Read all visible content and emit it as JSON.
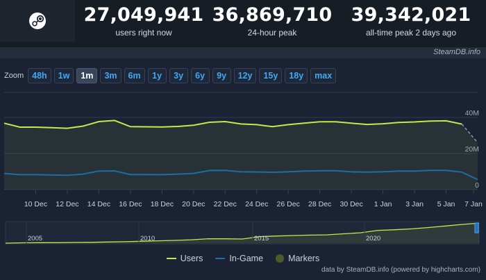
{
  "stats": [
    {
      "value": "27,049,941",
      "label": "users right now"
    },
    {
      "value": "36,869,710",
      "label": "24-hour peak"
    },
    {
      "value": "39,342,021",
      "label": "all-time peak 2 days ago"
    }
  ],
  "credit_top": "SteamDB.info",
  "zoom": {
    "label": "Zoom",
    "buttons": [
      "48h",
      "1w",
      "1m",
      "3m",
      "6m",
      "1y",
      "3y",
      "6y",
      "9y",
      "12y",
      "15y",
      "18y",
      "max"
    ],
    "active": "1m"
  },
  "icons": {
    "logo": "steam-logo-icon"
  },
  "colors": {
    "users": "#c6e84b",
    "ingame": "#1a6fa8",
    "markers": "#4d5a2a",
    "active_button": "#38465b",
    "button_text": "#3fa9f5"
  },
  "legend": {
    "users": "Users",
    "ingame": "In-Game",
    "markers": "Markers"
  },
  "credit_bottom": "data by SteamDB.info (powered by highcharts.com)",
  "chart_data": {
    "type": "line",
    "x_tick_labels": [
      "10 Dec",
      "12 Dec",
      "14 Dec",
      "16 Dec",
      "18 Dec",
      "20 Dec",
      "22 Dec",
      "24 Dec",
      "26 Dec",
      "28 Dec",
      "30 Dec",
      "1 Jan",
      "3 Jan",
      "5 Jan",
      "7 Jan"
    ],
    "y_tick_labels": [
      "0",
      "20M",
      "40M"
    ],
    "ylim": [
      0,
      40
    ],
    "grid": true,
    "legend_placement": "bottom-center",
    "x_days": [
      0,
      1,
      2,
      3,
      4,
      5,
      6,
      7,
      8,
      9,
      10,
      11,
      12,
      13,
      14,
      15,
      16,
      17,
      18,
      19,
      20,
      21,
      22,
      23,
      24,
      25,
      26,
      27,
      28,
      29,
      30
    ],
    "series": [
      {
        "name": "Users",
        "values": [
          36.8,
          34.6,
          34.6,
          34.3,
          34.0,
          35.2,
          37.7,
          38.3,
          34.9,
          34.8,
          34.7,
          35.0,
          35.7,
          37.3,
          37.7,
          36.4,
          36.0,
          34.9,
          36.0,
          36.8,
          37.6,
          37.6,
          36.8,
          36.1,
          36.5,
          37.2,
          37.5,
          38.0,
          38.1,
          36.3,
          26.0
        ]
      },
      {
        "name": "In-Game",
        "values": [
          9.0,
          8.3,
          8.3,
          8.1,
          8.0,
          8.6,
          10.3,
          10.4,
          8.4,
          8.4,
          8.3,
          8.6,
          9.0,
          10.6,
          10.7,
          9.9,
          9.8,
          9.6,
          9.9,
          10.3,
          10.5,
          10.5,
          9.9,
          9.7,
          9.9,
          10.3,
          10.3,
          10.7,
          10.7,
          9.7,
          5.6
        ]
      }
    ],
    "navigator_x_labels": [
      "2005",
      "2010",
      "2015",
      "2020"
    ],
    "navigator_users": [
      0.0,
      0.7,
      1.0,
      0.9,
      1.3,
      1.6,
      2.2,
      2.8,
      3.6,
      4.5,
      5.3,
      6.6,
      8.6,
      8.4,
      8.0,
      12.5,
      13.8,
      14.7,
      15.5,
      16.0,
      18.0,
      20.0,
      24.5,
      25.8,
      27.5,
      30.0,
      33.0,
      36.0,
      38.5
    ]
  }
}
